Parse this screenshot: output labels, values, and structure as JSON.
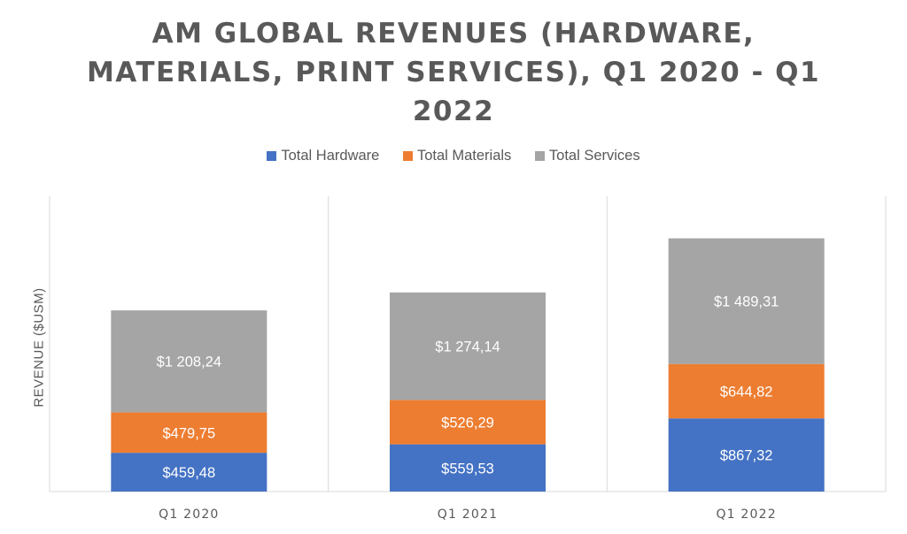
{
  "chart_data": {
    "type": "bar",
    "stacked": true,
    "title_lines": [
      "AM GLOBAL REVENUES (HARDWARE,",
      "MATERIALS, PRINT SERVICES), Q1 2020 - Q1",
      "2022"
    ],
    "xlabel": "",
    "ylabel": "REVENUE ($USM)",
    "categories": [
      "Q1 2020",
      "Q1 2021",
      "Q1 2022"
    ],
    "series": [
      {
        "name": "Total Hardware",
        "color": "#4472C4",
        "values": [
          459.48,
          559.53,
          867.32
        ],
        "labels": [
          "$459,48",
          "$559,53",
          "$867,32"
        ]
      },
      {
        "name": "Total Materials",
        "color": "#ED7D31",
        "values": [
          479.75,
          526.29,
          644.82
        ],
        "labels": [
          "$479,75",
          "$526,29",
          "$644,82"
        ]
      },
      {
        "name": "Total Services",
        "color": "#A5A5A5",
        "values": [
          1208.24,
          1274.14,
          1489.31
        ],
        "labels": [
          "$1 208,24",
          "$1 274,14",
          "$1 489,31"
        ]
      }
    ],
    "ylim": [
      0,
      3500
    ],
    "grid": "vertical-category-separators",
    "legend_position": "top"
  }
}
